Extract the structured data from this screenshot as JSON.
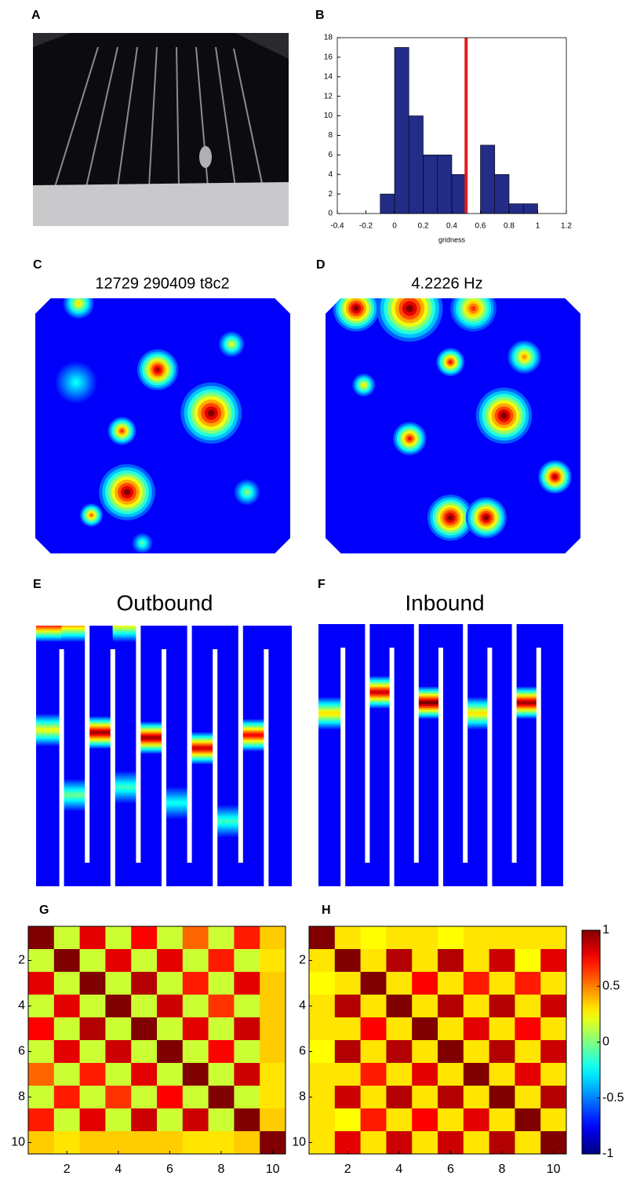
{
  "chart_data": [
    {
      "type": "photo",
      "label": "A"
    },
    {
      "type": "histogram",
      "label": "B",
      "xlabel": "gridness",
      "bins": [
        -0.1,
        0,
        0.1,
        0.2,
        0.3,
        0.4,
        0.5,
        0.6,
        0.7,
        0.8,
        0.9,
        1.0
      ],
      "values": [
        2,
        17,
        10,
        6,
        6,
        4,
        0,
        7,
        4,
        1,
        1
      ],
      "color": "#232c86",
      "threshold": 0.5,
      "threshold_color": "#e41a1c",
      "xlim": [
        -0.4,
        1.2
      ],
      "xticks": [
        -0.4,
        -0.2,
        0,
        0.2,
        0.4,
        0.6,
        0.8,
        1,
        1.2
      ],
      "ylim": [
        0,
        18
      ],
      "yticks": [
        0,
        2,
        4,
        6,
        8,
        10,
        12,
        14,
        16,
        18
      ]
    },
    {
      "type": "ratemap",
      "label": "C",
      "title": "12729 290409 t8c2",
      "fields": [
        {
          "x": 0.48,
          "y": 0.28,
          "r": 0.08,
          "peak": 0.95
        },
        {
          "x": 0.69,
          "y": 0.45,
          "r": 0.12,
          "peak": 1
        },
        {
          "x": 0.36,
          "y": 0.76,
          "r": 0.11,
          "peak": 1
        },
        {
          "x": 0.34,
          "y": 0.52,
          "r": 0.055,
          "peak": 0.8
        },
        {
          "x": 0.22,
          "y": 0.85,
          "r": 0.045,
          "peak": 0.75
        },
        {
          "x": 0.77,
          "y": 0.18,
          "r": 0.05,
          "peak": 0.55
        },
        {
          "x": 0.17,
          "y": 0.02,
          "r": 0.06,
          "peak": 0.6
        },
        {
          "x": 0.83,
          "y": 0.76,
          "r": 0.05,
          "peak": 0.45
        },
        {
          "x": 0.42,
          "y": 0.96,
          "r": 0.04,
          "peak": 0.4
        },
        {
          "x": 0.16,
          "y": 0.33,
          "r": 0.08,
          "peak": 0.3
        }
      ]
    },
    {
      "type": "ratemap",
      "label": "D",
      "title": "4.2226 Hz",
      "fields": [
        {
          "x": 0.12,
          "y": 0.04,
          "r": 0.09,
          "peak": 1
        },
        {
          "x": 0.33,
          "y": 0.04,
          "r": 0.13,
          "peak": 1
        },
        {
          "x": 0.58,
          "y": 0.04,
          "r": 0.09,
          "peak": 0.8
        },
        {
          "x": 0.7,
          "y": 0.46,
          "r": 0.11,
          "peak": 1
        },
        {
          "x": 0.49,
          "y": 0.25,
          "r": 0.055,
          "peak": 0.85
        },
        {
          "x": 0.78,
          "y": 0.23,
          "r": 0.065,
          "peak": 0.7
        },
        {
          "x": 0.33,
          "y": 0.55,
          "r": 0.065,
          "peak": 0.85
        },
        {
          "x": 0.15,
          "y": 0.34,
          "r": 0.045,
          "peak": 0.6
        },
        {
          "x": 0.49,
          "y": 0.86,
          "r": 0.09,
          "peak": 1
        },
        {
          "x": 0.63,
          "y": 0.86,
          "r": 0.08,
          "peak": 1
        },
        {
          "x": 0.9,
          "y": 0.7,
          "r": 0.065,
          "peak": 0.95
        }
      ]
    },
    {
      "type": "linearmap",
      "label": "E",
      "title": "Outbound",
      "arms": 10,
      "fields": [
        {
          "arm": 1,
          "y": 0.4,
          "peak": 0.55
        },
        {
          "arm": 3,
          "y": 0.41,
          "peak": 0.95
        },
        {
          "arm": 5,
          "y": 0.43,
          "peak": 0.95
        },
        {
          "arm": 7,
          "y": 0.47,
          "peak": 0.9
        },
        {
          "arm": 9,
          "y": 0.42,
          "peak": 0.85
        },
        {
          "arm": 2,
          "y": 0.65,
          "peak": 0.4
        },
        {
          "arm": 4,
          "y": 0.62,
          "peak": 0.35
        },
        {
          "arm": 6,
          "y": 0.68,
          "peak": 0.3
        },
        {
          "arm": 8,
          "y": 0.75,
          "peak": 0.35
        },
        {
          "arm": 1,
          "y": 0.0,
          "peak": 0.8
        },
        {
          "arm": 2,
          "y": 0.0,
          "peak": 0.65
        },
        {
          "arm": 4,
          "y": 0.0,
          "peak": 0.55
        }
      ]
    },
    {
      "type": "linearmap",
      "label": "F",
      "title": "Inbound",
      "arms": 10,
      "fields": [
        {
          "arm": 1,
          "y": 0.34,
          "peak": 0.6
        },
        {
          "arm": 3,
          "y": 0.26,
          "peak": 0.9
        },
        {
          "arm": 5,
          "y": 0.3,
          "peak": 1
        },
        {
          "arm": 7,
          "y": 0.34,
          "peak": 0.6
        },
        {
          "arm": 9,
          "y": 0.3,
          "peak": 0.95
        }
      ]
    },
    {
      "type": "heatmap",
      "label": "G",
      "clim": [
        -1,
        1
      ],
      "xlim": [
        0.5,
        10.5
      ],
      "ylim": [
        0.5,
        10.5
      ],
      "xticks": [
        2,
        4,
        6,
        8,
        10
      ],
      "yticks": [
        2,
        4,
        6,
        8,
        10
      ],
      "matrix": [
        [
          1,
          0.15,
          0.8,
          0.15,
          0.75,
          0.15,
          0.55,
          0.15,
          0.7,
          0.35
        ],
        [
          0.15,
          1,
          0.15,
          0.8,
          0.15,
          0.8,
          0.15,
          0.7,
          0.15,
          0.3
        ],
        [
          0.8,
          0.15,
          1,
          0.15,
          0.9,
          0.15,
          0.7,
          0.15,
          0.8,
          0.35
        ],
        [
          0.15,
          0.8,
          0.15,
          1,
          0.15,
          0.85,
          0.15,
          0.65,
          0.15,
          0.35
        ],
        [
          0.75,
          0.15,
          0.9,
          0.15,
          1,
          0.15,
          0.8,
          0.15,
          0.85,
          0.35
        ],
        [
          0.15,
          0.8,
          0.15,
          0.85,
          0.15,
          1,
          0.15,
          0.75,
          0.15,
          0.35
        ],
        [
          0.55,
          0.15,
          0.7,
          0.15,
          0.8,
          0.15,
          1,
          0.15,
          0.85,
          0.3
        ],
        [
          0.15,
          0.7,
          0.15,
          0.65,
          0.15,
          0.75,
          0.15,
          1,
          0.15,
          0.3
        ],
        [
          0.7,
          0.15,
          0.8,
          0.15,
          0.85,
          0.15,
          0.85,
          0.15,
          1,
          0.35
        ],
        [
          0.35,
          0.3,
          0.35,
          0.35,
          0.35,
          0.35,
          0.3,
          0.3,
          0.35,
          1
        ]
      ]
    },
    {
      "type": "heatmap",
      "label": "H",
      "clim": [
        -1,
        1
      ],
      "xlim": [
        0.5,
        10.5
      ],
      "ylim": [
        0.5,
        10.5
      ],
      "xticks": [
        2,
        4,
        6,
        8,
        10
      ],
      "yticks": [
        2,
        4,
        6,
        8,
        10
      ],
      "colorbar": {
        "lim": [
          -1,
          1
        ],
        "ticks": [
          -1,
          -0.5,
          0,
          0.5,
          1
        ]
      },
      "matrix": [
        [
          1,
          0.3,
          0.25,
          0.3,
          0.3,
          0.25,
          0.3,
          0.3,
          0.3,
          0.3
        ],
        [
          0.3,
          1,
          0.3,
          0.9,
          0.3,
          0.9,
          0.3,
          0.85,
          0.25,
          0.8
        ],
        [
          0.25,
          0.3,
          1,
          0.3,
          0.75,
          0.3,
          0.7,
          0.3,
          0.7,
          0.3
        ],
        [
          0.3,
          0.9,
          0.3,
          1,
          0.3,
          0.9,
          0.3,
          0.9,
          0.3,
          0.85
        ],
        [
          0.3,
          0.3,
          0.75,
          0.3,
          1,
          0.3,
          0.8,
          0.3,
          0.75,
          0.3
        ],
        [
          0.25,
          0.9,
          0.3,
          0.9,
          0.3,
          1,
          0.3,
          0.9,
          0.3,
          0.85
        ],
        [
          0.3,
          0.3,
          0.7,
          0.3,
          0.8,
          0.3,
          1,
          0.3,
          0.8,
          0.3
        ],
        [
          0.3,
          0.85,
          0.3,
          0.9,
          0.3,
          0.9,
          0.3,
          1,
          0.3,
          0.9
        ],
        [
          0.3,
          0.25,
          0.7,
          0.3,
          0.75,
          0.3,
          0.8,
          0.3,
          1,
          0.3
        ],
        [
          0.3,
          0.8,
          0.3,
          0.85,
          0.3,
          0.85,
          0.3,
          0.9,
          0.3,
          1
        ]
      ]
    }
  ]
}
